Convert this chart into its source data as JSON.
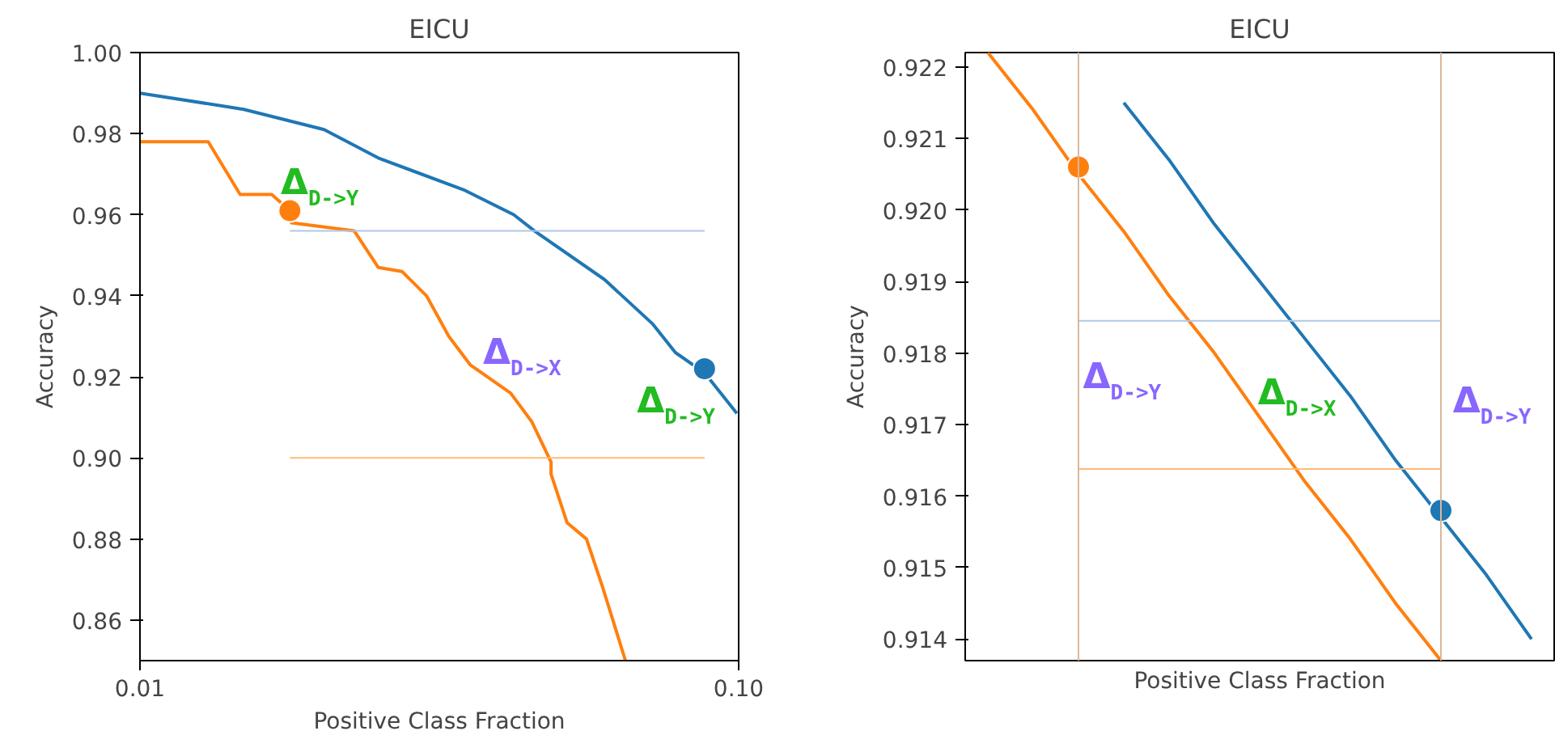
{
  "chart_data": [
    {
      "type": "line",
      "title": "EICU",
      "xlabel": "Positive Class Fraction",
      "ylabel": "Accuracy",
      "log": "x",
      "xlim": [
        0.01,
        0.1
      ],
      "xticks": [
        {
          "value": 0.01,
          "label": "0.01"
        },
        {
          "value": 0.1,
          "label": "0.10"
        }
      ],
      "ylim": [
        0.85,
        1.0
      ],
      "yticks": [
        {
          "value": 0.86,
          "label": "0.86"
        },
        {
          "value": 0.88,
          "label": "0.88"
        },
        {
          "value": 0.9,
          "label": "0.90"
        },
        {
          "value": 0.92,
          "label": "0.92"
        },
        {
          "value": 0.94,
          "label": "0.94"
        },
        {
          "value": 0.96,
          "label": "0.96"
        },
        {
          "value": 0.98,
          "label": "0.98"
        },
        {
          "value": 1.0,
          "label": "1.00"
        }
      ],
      "series": [
        {
          "color": "#1f77b4",
          "x": [
            0.01,
            0.0149,
            0.0203,
            0.025,
            0.0349,
            0.0421,
            0.0456,
            0.0597,
            0.0719,
            0.0784,
            0.0877,
            0.0993
          ],
          "values": [
            0.99,
            0.986,
            0.981,
            0.974,
            0.966,
            0.96,
            0.956,
            0.944,
            0.933,
            0.926,
            0.921,
            0.911
          ]
        },
        {
          "color": "#ff7f0e",
          "x": [
            0.01,
            0.013,
            0.0147,
            0.0166,
            0.0178,
            0.0179,
            0.0228,
            0.025,
            0.0274,
            0.0301,
            0.0328,
            0.0356,
            0.0416,
            0.0451,
            0.0486,
            0.0486,
            0.0517,
            0.0557,
            0.0593,
            0.0647
          ],
          "values": [
            0.978,
            0.978,
            0.965,
            0.965,
            0.961,
            0.958,
            0.956,
            0.947,
            0.946,
            0.94,
            0.93,
            0.923,
            0.916,
            0.909,
            0.899,
            0.896,
            0.884,
            0.88,
            0.868,
            0.85
          ]
        },
        {
          "color": "#aec7e8",
          "x": [
            0.0178,
            0.0877
          ],
          "values": [
            0.956,
            0.956
          ]
        },
        {
          "color": "#ffbb78",
          "x": [
            0.0178,
            0.0877
          ],
          "values": [
            0.9,
            0.9
          ]
        },
        {
          "type": "scatter",
          "marker": "circle",
          "color": "#ff7f0e",
          "x": [
            0.0178
          ],
          "values": [
            0.961
          ]
        },
        {
          "type": "scatter",
          "marker": "circle",
          "color": "#1f77b4",
          "x": [
            0.0877
          ],
          "values": [
            0.922
          ]
        }
      ],
      "annotations": [
        "Δ$_{D->Y}$",
        "Δ$_{D->X}$",
        "Δ$_{D->Y}$"
      ]
    },
    {
      "type": "line",
      "title": "EICU",
      "xlabel": "Positive Class Fraction",
      "ylabel": "Accuracy",
      "tick_labels": "y",
      "categories": [
        null,
        null,
        null,
        null,
        null,
        null,
        null,
        null,
        null,
        null,
        null,
        null,
        null
      ],
      "ylim": [
        0.9137,
        0.9222
      ],
      "yticks": [
        {
          "value": 0.914,
          "label": "0.914"
        },
        {
          "value": 0.915,
          "label": "0.915"
        },
        {
          "value": 0.916,
          "label": "0.916"
        },
        {
          "value": 0.917,
          "label": "0.917"
        },
        {
          "value": 0.918,
          "label": "0.918"
        },
        {
          "value": 0.919,
          "label": "0.919"
        },
        {
          "value": 0.92,
          "label": "0.920"
        },
        {
          "value": 0.921,
          "label": "0.921"
        },
        {
          "value": 0.922,
          "label": "0.922"
        }
      ],
      "series": [
        {
          "color": "#1f77b4",
          "values": [
            null,
            null,
            null,
            0.9215,
            0.9207,
            0.9198,
            0.919,
            0.9182,
            0.9174,
            0.9165,
            0.9157,
            0.9149,
            0.914
          ]
        },
        {
          "color": "#ff7f0e",
          "values": [
            0.9222,
            0.9214,
            0.9205,
            0.9197,
            0.9188,
            0.918,
            0.9171,
            0.9162,
            0.9154,
            0.9145,
            0.9137,
            null,
            null
          ]
        },
        {
          "color": "#aec7e8",
          "values": [
            null,
            null,
            0.91845,
            0.91845,
            0.91845,
            0.91845,
            0.91845,
            0.91845,
            0.91845,
            0.91845,
            0.91845,
            null,
            null
          ]
        },
        {
          "color": "#ffbb78",
          "values": [
            null,
            null,
            0.91638,
            0.91638,
            0.91638,
            0.91638,
            0.91638,
            0.91638,
            0.91638,
            0.91638,
            0.91638,
            null,
            null
          ]
        },
        {
          "type": "scatter",
          "marker": "circle",
          "color": "#ff7f0e",
          "values": [
            null,
            null,
            0.9206,
            null,
            null,
            null,
            null,
            null,
            null,
            null,
            null,
            null,
            null
          ]
        },
        {
          "type": "scatter",
          "marker": "circle",
          "color": "#1f77b4",
          "values": [
            null,
            null,
            null,
            null,
            null,
            null,
            null,
            null,
            null,
            null,
            0.9158,
            null,
            null
          ]
        }
      ],
      "annotations": [
        "Δ$_{D->Y}$",
        "Δ$_{D->X}$",
        "Δ$_{D->Y}$"
      ]
    }
  ]
}
